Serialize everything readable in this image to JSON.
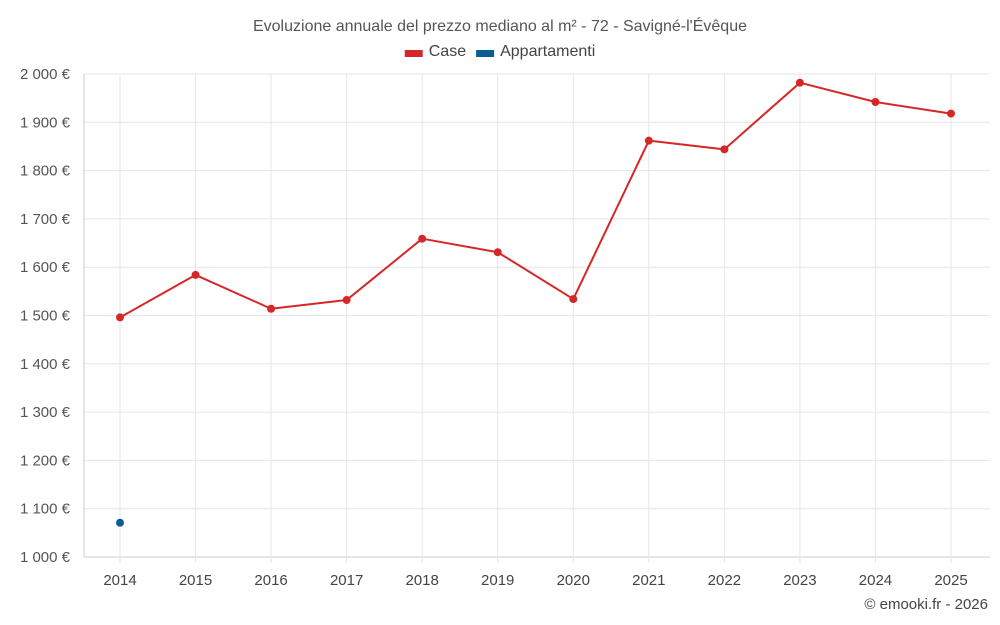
{
  "chart_data": {
    "type": "line",
    "title": "Evoluzione annuale del prezzo mediano al m² - 72 - Savigné-l'Évêque",
    "categories": [
      "2014",
      "2015",
      "2016",
      "2017",
      "2018",
      "2019",
      "2020",
      "2021",
      "2022",
      "2023",
      "2024",
      "2025"
    ],
    "series": [
      {
        "name": "Case",
        "color": "#d62728",
        "values": [
          1496,
          1584,
          1514,
          1532,
          1659,
          1631,
          1534,
          1862,
          1844,
          1982,
          1942,
          1918
        ]
      },
      {
        "name": "Appartamenti",
        "color": "#0b5e95",
        "values": [
          1071,
          null,
          null,
          null,
          null,
          null,
          null,
          null,
          null,
          null,
          null,
          null
        ]
      }
    ],
    "ylim": [
      1000,
      2000
    ],
    "yticks": [
      1000,
      1100,
      1200,
      1300,
      1400,
      1500,
      1600,
      1700,
      1800,
      1900,
      2000
    ],
    "ytick_labels": [
      "1 000 €",
      "1 100 €",
      "1 200 €",
      "1 300 €",
      "1 400 €",
      "1 500 €",
      "1 600 €",
      "1 700 €",
      "1 800 €",
      "1 900 €",
      "2 000 €"
    ],
    "legend_position": "top-center",
    "grid": true,
    "xlabel": "",
    "ylabel": ""
  },
  "credit": "© emooki.fr - 2026"
}
